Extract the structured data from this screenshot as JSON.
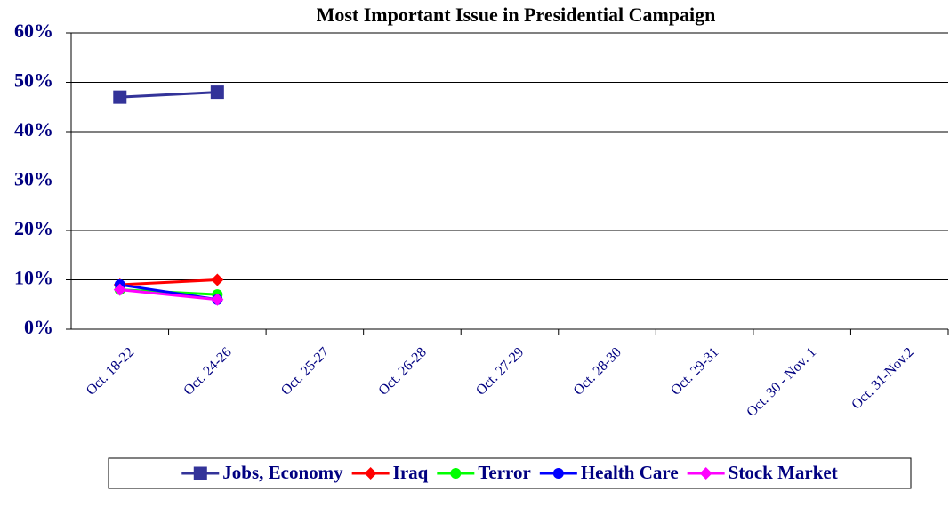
{
  "chart_data": {
    "type": "line",
    "title": "Most Important Issue in Presidential Campaign",
    "categories": [
      "Oct. 18-22",
      "Oct. 24-26",
      "Oct. 25-27",
      "Oct. 26-28",
      "Oct. 27-29",
      "Oct. 28-30",
      "Oct. 29-31",
      "Oct. 30 - Nov. 1",
      "Oct. 31-Nov.2"
    ],
    "series": [
      {
        "name": "Jobs, Economy",
        "color": "#333399",
        "marker": "square",
        "values": [
          47,
          48,
          null,
          null,
          null,
          null,
          null,
          null,
          null
        ]
      },
      {
        "name": "Iraq",
        "color": "#ff0000",
        "marker": "diamond",
        "values": [
          9,
          10,
          null,
          null,
          null,
          null,
          null,
          null,
          null
        ]
      },
      {
        "name": "Terror",
        "color": "#00ff00",
        "marker": "circle",
        "values": [
          8,
          7,
          null,
          null,
          null,
          null,
          null,
          null,
          null
        ]
      },
      {
        "name": "Health Care",
        "color": "#0000ff",
        "marker": "circle",
        "values": [
          9,
          6,
          null,
          null,
          null,
          null,
          null,
          null,
          null
        ]
      },
      {
        "name": "Stock Market",
        "color": "#ff00ff",
        "marker": "diamond",
        "values": [
          8,
          6,
          null,
          null,
          null,
          null,
          null,
          null,
          null
        ]
      }
    ],
    "ylim": [
      0,
      60
    ],
    "yticks": [
      {
        "value": 0,
        "label": "0%"
      },
      {
        "value": 10,
        "label": "10%"
      },
      {
        "value": 20,
        "label": "20%"
      },
      {
        "value": 30,
        "label": "30%"
      },
      {
        "value": 40,
        "label": "40%"
      },
      {
        "value": 50,
        "label": "50%"
      },
      {
        "value": 60,
        "label": "60%"
      }
    ],
    "grid": true,
    "legend": "bottom"
  }
}
